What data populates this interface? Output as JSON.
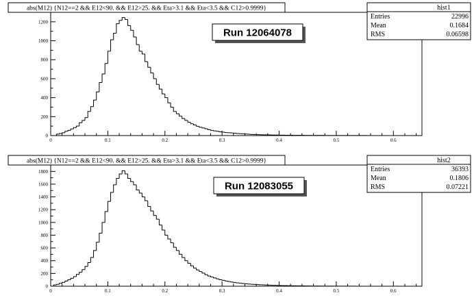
{
  "chart_data": [
    {
      "type": "bar",
      "title": "abs(M12) {N12==2 && E12<90. && E12>25. && Eta>3.1 && Eta<3.5 && C12>0.9999}",
      "run_label": "Run 12064078",
      "stats": {
        "name": "hist1",
        "rows": [
          {
            "label": "Entries",
            "value": "22996"
          },
          {
            "label": "Mean",
            "value": "0.1684"
          },
          {
            "label": "RMS",
            "value": "0.06598"
          }
        ]
      },
      "xlim": [
        0,
        0.65
      ],
      "ylim": [
        0,
        1300
      ],
      "x_ticks": [
        {
          "v": 0,
          "t": "0"
        },
        {
          "v": 0.1,
          "t": "0.1"
        },
        {
          "v": 0.2,
          "t": "0.2"
        },
        {
          "v": 0.3,
          "t": "0.3"
        },
        {
          "v": 0.4,
          "t": "0.4"
        },
        {
          "v": 0.5,
          "t": "0.5"
        },
        {
          "v": 0.6,
          "t": "0.6"
        }
      ],
      "y_ticks": [
        {
          "v": 0,
          "t": "0"
        },
        {
          "v": 200,
          "t": "200"
        },
        {
          "v": 400,
          "t": "400"
        },
        {
          "v": 600,
          "t": "600"
        },
        {
          "v": 800,
          "t": "800"
        },
        {
          "v": 1000,
          "t": "1000"
        },
        {
          "v": 1200,
          "t": "1200"
        }
      ],
      "bin_start": 0.01,
      "bin_width": 0.005,
      "values": [
        15,
        22,
        30,
        45,
        55,
        70,
        85,
        100,
        135,
        160,
        190,
        255,
        305,
        375,
        460,
        560,
        650,
        760,
        890,
        1010,
        1080,
        1180,
        1215,
        1245,
        1225,
        1160,
        1110,
        1040,
        960,
        890,
        860,
        780,
        720,
        660,
        600,
        540,
        490,
        440,
        400,
        345,
        300,
        255,
        230,
        205,
        180,
        160,
        140,
        125,
        112,
        98,
        88,
        80,
        72,
        62,
        55,
        50,
        45,
        40,
        36,
        32,
        30,
        28,
        25,
        22,
        20,
        18,
        16,
        14,
        12,
        11,
        10,
        9,
        8,
        8,
        7,
        6,
        6,
        5,
        5,
        5,
        4,
        4,
        4,
        3,
        3,
        3,
        3,
        2,
        2,
        2,
        2,
        2,
        2,
        2,
        1,
        1,
        1,
        1,
        1,
        1,
        1,
        1,
        1,
        1,
        1,
        1,
        1,
        1,
        1
      ]
    },
    {
      "type": "bar",
      "title": "abs(M12) {N12==2 && E12<90. && E12>25. && Eta>3.1 && Eta<3.5 && C12>0.9999}",
      "run_label": "Run 12083055",
      "stats": {
        "name": "hist2",
        "rows": [
          {
            "label": "Entries",
            "value": "36393"
          },
          {
            "label": "Mean",
            "value": "0.1806"
          },
          {
            "label": "RMS",
            "value": "0.07221"
          }
        ]
      },
      "xlim": [
        0,
        0.65
      ],
      "ylim": [
        0,
        1900
      ],
      "x_ticks": [
        {
          "v": 0,
          "t": "0"
        },
        {
          "v": 0.1,
          "t": "0.1"
        },
        {
          "v": 0.2,
          "t": "0.2"
        },
        {
          "v": 0.3,
          "t": "0.3"
        },
        {
          "v": 0.4,
          "t": "0.4"
        },
        {
          "v": 0.5,
          "t": "0.5"
        },
        {
          "v": 0.6,
          "t": "0.6"
        }
      ],
      "y_ticks": [
        {
          "v": 0,
          "t": "0"
        },
        {
          "v": 200,
          "t": "200"
        },
        {
          "v": 400,
          "t": "400"
        },
        {
          "v": 600,
          "t": "600"
        },
        {
          "v": 800,
          "t": "800"
        },
        {
          "v": 1000,
          "t": "1000"
        },
        {
          "v": 1200,
          "t": "1200"
        },
        {
          "v": 1400,
          "t": "1400"
        },
        {
          "v": 1600,
          "t": "1600"
        },
        {
          "v": 1800,
          "t": "1800"
        }
      ],
      "bin_start": 0.005,
      "bin_width": 0.005,
      "values": [
        20,
        30,
        45,
        60,
        80,
        100,
        125,
        150,
        185,
        220,
        260,
        310,
        370,
        450,
        560,
        690,
        830,
        1000,
        1170,
        1330,
        1470,
        1590,
        1690,
        1760,
        1810,
        1760,
        1690,
        1640,
        1590,
        1510,
        1460,
        1400,
        1340,
        1250,
        1180,
        1110,
        1050,
        960,
        880,
        800,
        740,
        680,
        610,
        560,
        500,
        450,
        400,
        360,
        320,
        285,
        255,
        230,
        205,
        180,
        160,
        145,
        130,
        115,
        102,
        92,
        82,
        74,
        66,
        58,
        52,
        47,
        42,
        38,
        34,
        31,
        28,
        25,
        23,
        21,
        19,
        17,
        15,
        14,
        12,
        11,
        10,
        9,
        8,
        7,
        7,
        6,
        5,
        5,
        4,
        4,
        3,
        3,
        3,
        2,
        2,
        2,
        2,
        2,
        1,
        1,
        1,
        1,
        1,
        1,
        1,
        1
      ]
    }
  ]
}
